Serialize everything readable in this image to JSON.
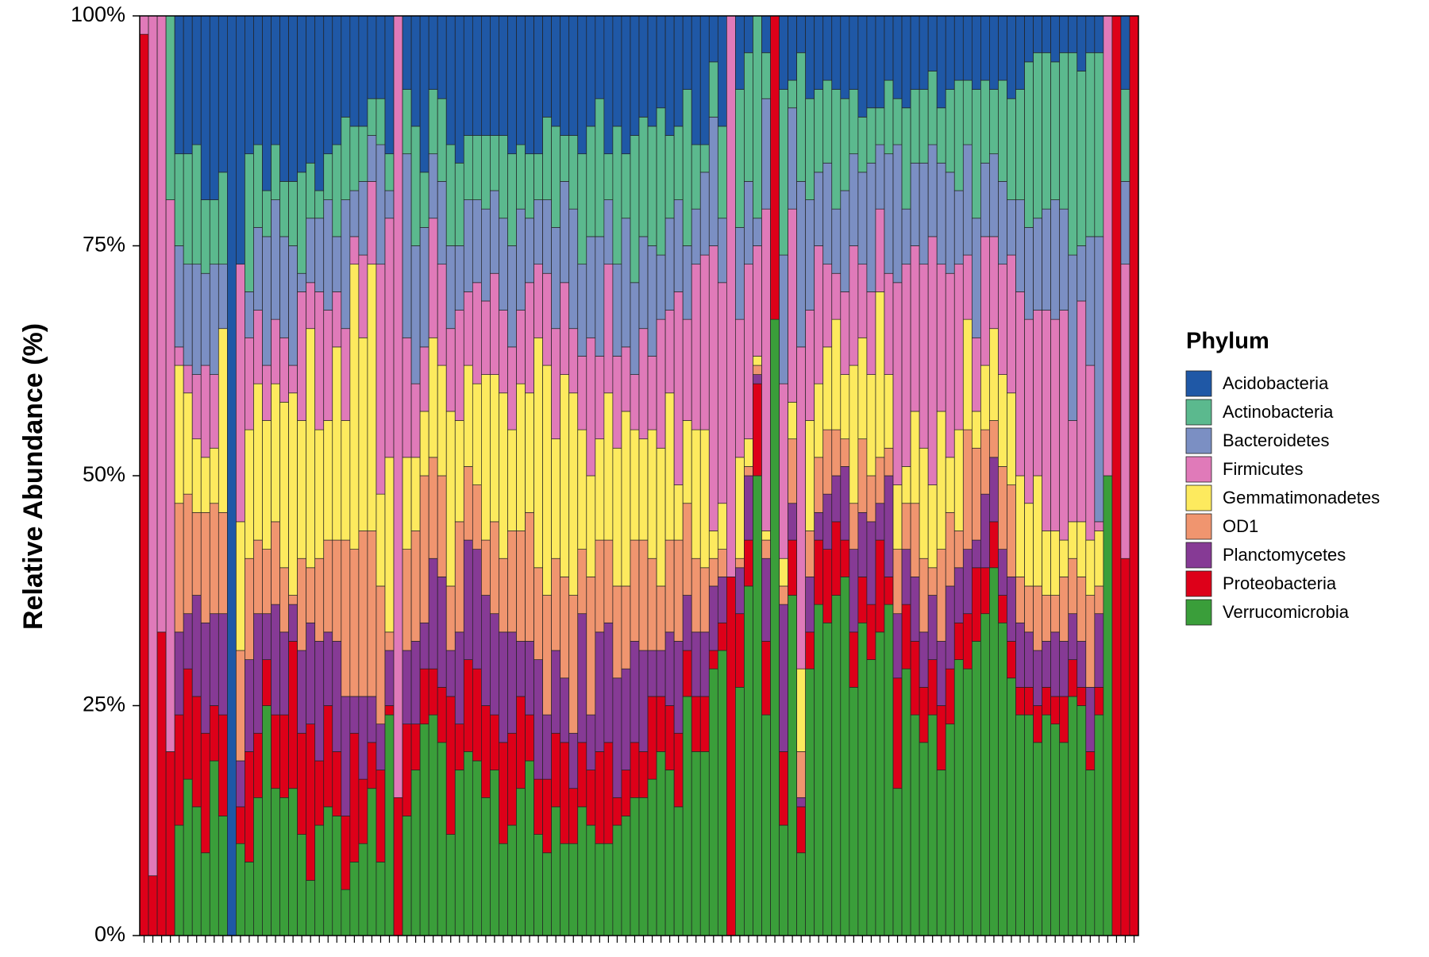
{
  "chart_data": {
    "type": "stacked_bar",
    "y_label": "Relative Abundance (%)",
    "legend_title": "Phylum",
    "legend_position": "right",
    "ylim": [
      0,
      100
    ],
    "yticks": [
      {
        "value": 0,
        "label": "0%"
      },
      {
        "value": 25,
        "label": "25%"
      },
      {
        "value": 50,
        "label": "50%"
      },
      {
        "value": 75,
        "label": "75%"
      },
      {
        "value": 100,
        "label": "100%"
      }
    ],
    "categories": [
      null,
      null,
      null,
      null,
      null,
      null,
      null,
      null,
      null,
      null,
      null,
      null,
      null,
      null,
      null,
      null,
      null,
      null,
      null,
      null,
      null,
      null,
      null,
      null,
      null,
      null,
      null,
      null,
      null,
      null,
      null,
      null,
      null,
      null,
      null,
      null,
      null,
      null,
      null,
      null,
      null,
      null,
      null,
      null,
      null,
      null,
      null,
      null,
      null,
      null,
      null,
      null,
      null,
      null,
      null,
      null,
      null,
      null,
      null,
      null,
      null,
      null,
      null,
      null,
      null,
      null,
      null,
      null,
      null,
      null,
      null,
      null,
      null,
      null,
      null,
      null,
      null,
      null,
      null,
      null,
      null,
      null,
      null,
      null,
      null,
      null,
      null,
      null,
      null,
      null,
      null,
      null,
      null,
      null,
      null,
      null,
      null,
      null,
      null,
      null,
      null,
      null,
      null,
      null,
      null,
      null,
      null,
      null,
      null,
      null,
      null,
      null,
      null,
      null
    ],
    "series": [
      {
        "name": "Acidobacteria",
        "color": "#1f58a6",
        "values": [
          0,
          0,
          0,
          0,
          15,
          15,
          14,
          20,
          20,
          17,
          100,
          27,
          15,
          14,
          19,
          14,
          18,
          18,
          17,
          16,
          19,
          15,
          14,
          11,
          12,
          12,
          9,
          9,
          15,
          0,
          8,
          12,
          17,
          8,
          9,
          14,
          16,
          13,
          13,
          13,
          13,
          13,
          15,
          14,
          15,
          15,
          11,
          12,
          13,
          13,
          15,
          12,
          9,
          15,
          12,
          15,
          13,
          11,
          12,
          10,
          13,
          12,
          8,
          14,
          14,
          5,
          12,
          0,
          8,
          4,
          0,
          4,
          0,
          8,
          7,
          4,
          9,
          8,
          7,
          8,
          9,
          8,
          11,
          10,
          10,
          7,
          9,
          10,
          8,
          8,
          6,
          10,
          8,
          7,
          7,
          8,
          7,
          8,
          7,
          9,
          8,
          5,
          4,
          4,
          5,
          4,
          4,
          6,
          4,
          4,
          0,
          0,
          8,
          0
        ]
      },
      {
        "name": "Actinobacteria",
        "color": "#5bb98e",
        "values": [
          0,
          0,
          0,
          20,
          10,
          12,
          13,
          8,
          7,
          10,
          0,
          0,
          15,
          9,
          5,
          6,
          6,
          7,
          11,
          6,
          3,
          5,
          10,
          9,
          7,
          6,
          4,
          5,
          4,
          0,
          7,
          13,
          6,
          7,
          9,
          11,
          9,
          7,
          7,
          8,
          6,
          9,
          10,
          7,
          7,
          5,
          9,
          11,
          5,
          8,
          12,
          12,
          15,
          5,
          15,
          7,
          16,
          13,
          13,
          16,
          9,
          8,
          17,
          7,
          3,
          6,
          10,
          0,
          15,
          14,
          22,
          5,
          0,
          18,
          3,
          14,
          11,
          9,
          9,
          13,
          10,
          7,
          6,
          6,
          4,
          8,
          5,
          11,
          8,
          8,
          8,
          6,
          9,
          12,
          7,
          14,
          9,
          7,
          11,
          11,
          12,
          18,
          18,
          17,
          15,
          17,
          22,
          19,
          20,
          20,
          0,
          0,
          10,
          0
        ]
      },
      {
        "name": "Bacteroidetes",
        "color": "#7b8fc3",
        "values": [
          0,
          0,
          0,
          0,
          11,
          11,
          12,
          10,
          12,
          7,
          0,
          0,
          5,
          9,
          14,
          13,
          11,
          13,
          2,
          7,
          8,
          12,
          6,
          14,
          5,
          8,
          5,
          13,
          3,
          0,
          20,
          15,
          13,
          7,
          9,
          9,
          7,
          10,
          9,
          10,
          9,
          10,
          11,
          11,
          7,
          7,
          8,
          11,
          11,
          13,
          10,
          11,
          13,
          7,
          10,
          14,
          10,
          10,
          12,
          7,
          10,
          10,
          8,
          6,
          9,
          14,
          7,
          0,
          10,
          9,
          3,
          12,
          0,
          14,
          11,
          18,
          12,
          8,
          11,
          7,
          11,
          10,
          10,
          14,
          7,
          13,
          15,
          6,
          9,
          11,
          10,
          11,
          11,
          8,
          12,
          13,
          8,
          9,
          9,
          6,
          10,
          10,
          10,
          11,
          13,
          11,
          18,
          6,
          14,
          31,
          0,
          0,
          9,
          0
        ]
      },
      {
        "name": "Firmicutes",
        "color": "#e07ab9",
        "values": [
          2,
          93.5,
          67,
          60,
          2,
          3,
          7,
          10,
          8,
          0,
          0,
          28,
          10,
          8,
          6,
          7,
          7,
          3,
          14,
          5,
          15,
          12,
          6,
          10,
          3,
          9,
          9,
          25,
          26,
          85,
          13,
          8,
          7,
          13,
          11,
          9,
          12,
          8,
          11,
          8,
          11,
          9,
          9,
          8,
          12,
          8,
          10,
          12,
          10,
          7,
          8,
          15,
          9,
          14,
          10,
          7,
          6,
          12,
          8,
          14,
          9,
          21,
          11,
          18,
          19,
          31,
          24,
          61,
          15,
          19,
          12,
          35,
          0,
          19,
          21,
          35,
          12,
          15,
          9,
          5,
          9,
          13,
          8,
          9,
          9,
          11,
          22,
          22,
          18,
          20,
          27,
          16,
          20,
          18,
          7,
          8,
          14,
          10,
          12,
          15,
          20,
          20,
          18,
          24,
          23,
          25,
          11,
          24,
          19,
          1,
          50,
          0,
          32,
          0
        ]
      },
      {
        "name": "Gemmatimonadetes",
        "color": "#fdea5e",
        "values": [
          0,
          0,
          0,
          0,
          15,
          11,
          8,
          6,
          6,
          20,
          0,
          14,
          14,
          17,
          14,
          15,
          18,
          22,
          15,
          26,
          14,
          13,
          21,
          13,
          31,
          21,
          29,
          10,
          19,
          0,
          10,
          8,
          7,
          13,
          12,
          19,
          11,
          11,
          11,
          18,
          16,
          18,
          11,
          16,
          13,
          25,
          25,
          13,
          22,
          22,
          13,
          11,
          11,
          16,
          15,
          19,
          12,
          11,
          14,
          15,
          16,
          6,
          9,
          14,
          15,
          3,
          5,
          0,
          11,
          3,
          1,
          1,
          0,
          3,
          4,
          9,
          12,
          8,
          9,
          12,
          7,
          15,
          11,
          11,
          18,
          8,
          7,
          4,
          10,
          12,
          9,
          15,
          6,
          11,
          12,
          4,
          7,
          10,
          10,
          10,
          11,
          9,
          12,
          7,
          7,
          4,
          4,
          6,
          6,
          6,
          0,
          0,
          0,
          0
        ]
      },
      {
        "name": "OD1",
        "color": "#f0956f",
        "values": [
          0,
          0,
          0,
          0,
          14,
          13,
          9,
          12,
          12,
          11,
          0,
          12,
          11,
          8,
          7,
          9,
          7,
          1,
          10,
          6,
          9,
          10,
          11,
          17,
          16,
          18,
          18,
          15,
          2,
          0,
          11,
          12,
          16,
          11,
          11,
          7,
          12,
          8,
          7,
          6,
          10,
          8,
          11,
          12,
          14,
          10,
          13,
          10,
          11,
          15,
          7,
          15,
          10,
          9,
          10,
          9,
          11,
          12,
          10,
          7,
          10,
          11,
          10,
          8,
          7,
          3,
          3,
          0,
          1,
          1,
          1,
          2,
          0,
          2,
          7,
          5,
          5,
          6,
          7,
          5,
          3,
          5,
          8,
          5,
          5,
          3,
          7,
          5,
          8,
          8,
          3,
          10,
          8,
          4,
          13,
          10,
          7,
          4,
          9,
          10,
          5,
          5,
          7,
          5,
          4,
          7,
          6,
          7,
          10,
          3,
          0,
          0,
          0,
          0
        ]
      },
      {
        "name": "Planctomycetes",
        "color": "#863a95",
        "values": [
          0,
          0,
          0,
          0,
          9,
          6,
          11,
          12,
          10,
          11,
          0,
          5,
          10,
          13,
          5,
          12,
          9,
          4,
          9,
          11,
          13,
          8,
          12,
          13,
          4,
          9,
          5,
          5,
          6,
          0,
          8,
          9,
          5,
          12,
          12,
          5,
          10,
          13,
          13,
          12,
          11,
          12,
          11,
          6,
          8,
          13,
          7,
          9,
          7,
          6,
          14,
          6,
          13,
          13,
          13,
          11,
          11,
          11,
          5,
          5,
          8,
          10,
          6,
          7,
          7,
          7,
          5,
          0,
          5,
          7,
          1,
          9,
          0,
          16,
          4,
          1,
          6,
          3,
          6,
          5,
          8,
          9,
          7,
          9,
          4,
          11,
          7,
          6,
          7,
          6,
          7,
          7,
          9,
          6,
          7,
          3,
          8,
          7,
          5,
          7,
          7,
          6,
          6,
          5,
          7,
          6,
          5,
          5,
          7,
          8,
          0,
          0,
          0,
          0
        ]
      },
      {
        "name": "Proteobacteria",
        "color": "#dd0019",
        "values": [
          98,
          6.5,
          33,
          20,
          12,
          12,
          12,
          13,
          6,
          11,
          0,
          4,
          12,
          7,
          5,
          8,
          9,
          16,
          11,
          17,
          7,
          11,
          7,
          8,
          14,
          7,
          5,
          10,
          1,
          15,
          10,
          5,
          6,
          5,
          6,
          15,
          5,
          10,
          10,
          10,
          6,
          11,
          10,
          10,
          5,
          6,
          8,
          8,
          11,
          6,
          7,
          6,
          10,
          11,
          3,
          5,
          6,
          5,
          9,
          6,
          7,
          8,
          5,
          6,
          6,
          2,
          3,
          39,
          8,
          5,
          10,
          8,
          33,
          8,
          6,
          5,
          4,
          7,
          8,
          8,
          4,
          6,
          5,
          6,
          10,
          3,
          12,
          7,
          8,
          6,
          6,
          7,
          6,
          4,
          6,
          8,
          5,
          5,
          3,
          4,
          3,
          3,
          4,
          3,
          3,
          5,
          4,
          2,
          2,
          3,
          0,
          100,
          41,
          100
        ]
      },
      {
        "name": "Verrucomicrobia",
        "color": "#3a9e3a",
        "values": [
          0,
          0,
          0,
          0,
          12,
          17,
          14,
          9,
          19,
          13,
          0,
          10,
          8,
          15,
          25,
          16,
          15,
          16,
          11,
          6,
          12,
          14,
          13,
          5,
          8,
          10,
          16,
          8,
          24,
          0,
          13,
          18,
          23,
          24,
          21,
          11,
          18,
          20,
          19,
          15,
          18,
          10,
          12,
          16,
          19,
          11,
          9,
          14,
          10,
          10,
          14,
          12,
          10,
          10,
          12,
          13,
          15,
          15,
          17,
          20,
          18,
          14,
          26,
          20,
          20,
          29,
          31,
          0,
          27,
          38,
          50,
          24,
          67,
          12,
          37,
          9,
          29,
          36,
          34,
          37,
          39,
          27,
          34,
          30,
          33,
          36,
          16,
          29,
          24,
          21,
          24,
          18,
          23,
          30,
          29,
          32,
          35,
          40,
          34,
          28,
          24,
          24,
          21,
          24,
          23,
          21,
          26,
          25,
          18,
          24,
          50,
          0,
          0,
          0
        ]
      }
    ]
  }
}
